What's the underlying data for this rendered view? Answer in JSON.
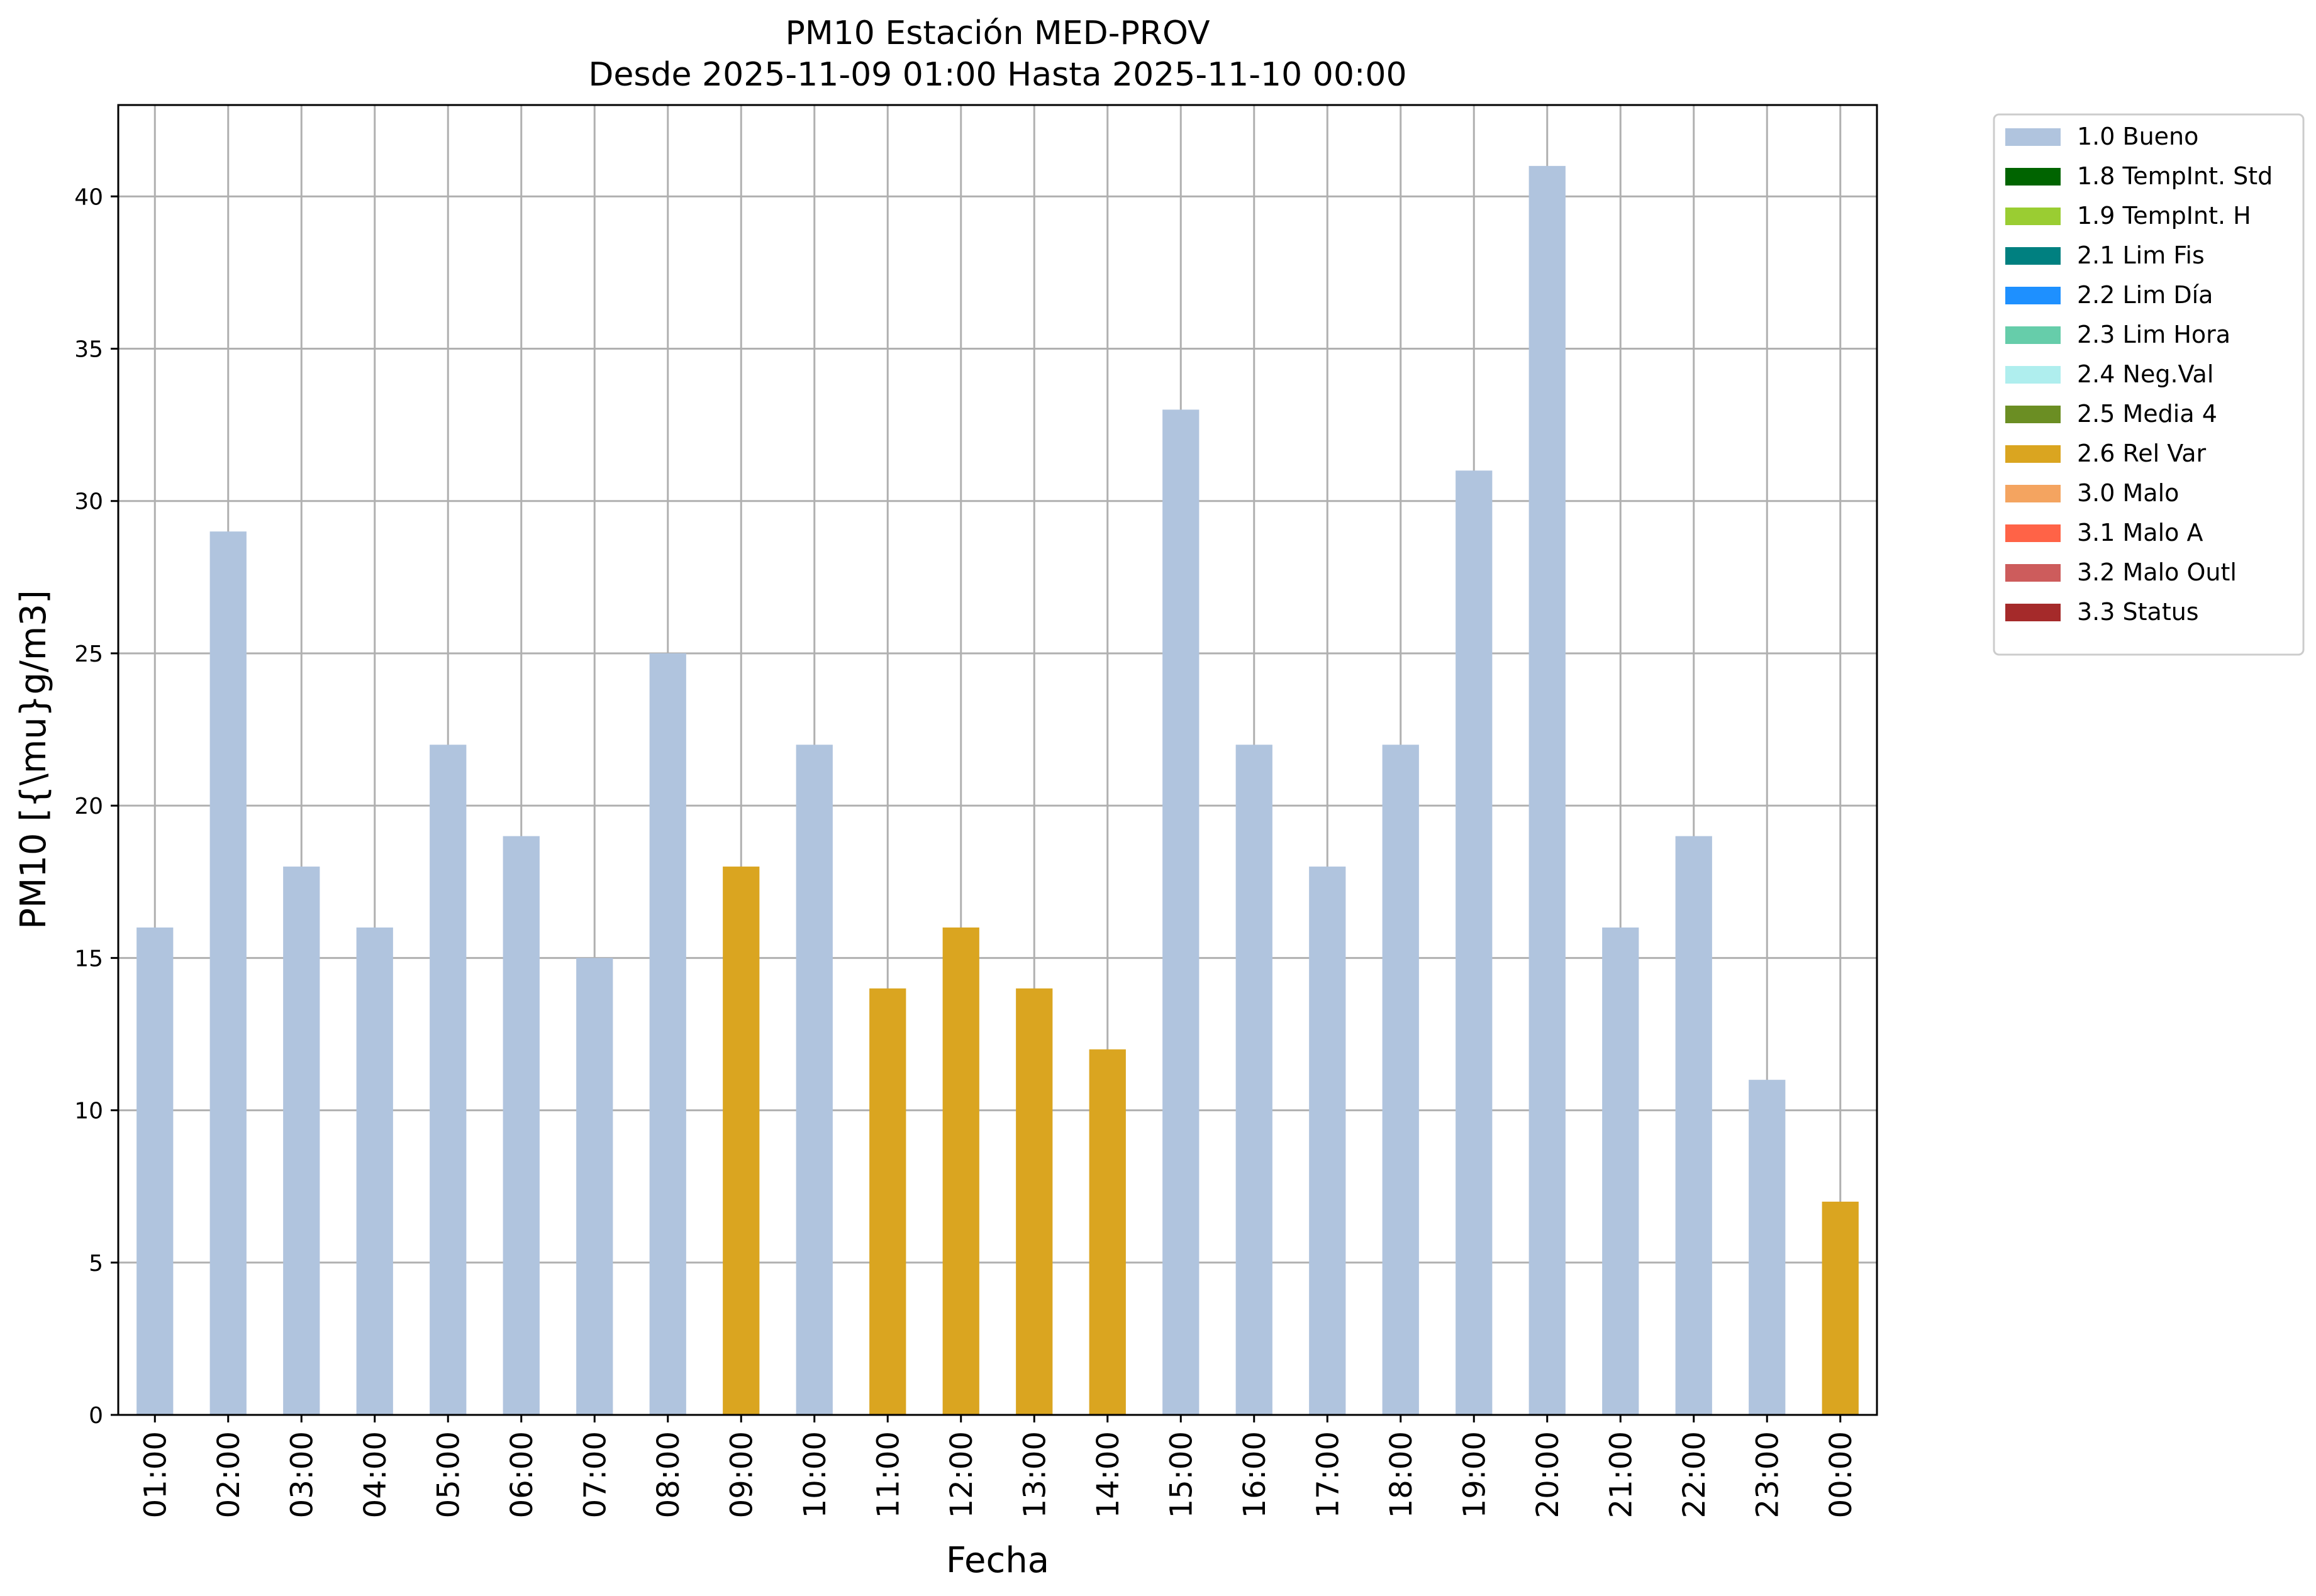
{
  "chart_data": {
    "type": "bar",
    "title": "PM10 Estación MED-PROV",
    "subtitle": "Desde 2025-11-09 01:00 Hasta 2025-11-10 00:00",
    "xlabel": "Fecha",
    "ylabel": "PM10 [{\\mu}g/m3]",
    "ylim": [
      0,
      43
    ],
    "yticks": [
      0,
      5,
      10,
      15,
      20,
      25,
      30,
      35,
      40
    ],
    "grid": true,
    "legend_position": "outside-top-right",
    "categories": [
      "01:00",
      "02:00",
      "03:00",
      "04:00",
      "05:00",
      "06:00",
      "07:00",
      "08:00",
      "09:00",
      "10:00",
      "11:00",
      "12:00",
      "13:00",
      "14:00",
      "15:00",
      "16:00",
      "17:00",
      "18:00",
      "19:00",
      "20:00",
      "21:00",
      "22:00",
      "23:00",
      "00:00"
    ],
    "values": [
      16,
      29,
      18,
      16,
      22,
      19,
      15,
      25,
      18,
      22,
      14,
      16,
      14,
      12,
      33,
      22,
      18,
      22,
      31,
      41,
      16,
      19,
      11,
      7
    ],
    "flags": [
      "1.0 Bueno",
      "1.0 Bueno",
      "1.0 Bueno",
      "1.0 Bueno",
      "1.0 Bueno",
      "1.0 Bueno",
      "1.0 Bueno",
      "1.0 Bueno",
      "2.6 Rel Var",
      "1.0 Bueno",
      "2.6 Rel Var",
      "2.6 Rel Var",
      "2.6 Rel Var",
      "2.6 Rel Var",
      "1.0 Bueno",
      "1.0 Bueno",
      "1.0 Bueno",
      "1.0 Bueno",
      "1.0 Bueno",
      "1.0 Bueno",
      "1.0 Bueno",
      "1.0 Bueno",
      "1.0 Bueno",
      "2.6 Rel Var"
    ],
    "legend": [
      {
        "label": "1.0 Bueno",
        "color": "#b0c4de"
      },
      {
        "label": "1.8 TempInt. Std",
        "color": "#006400"
      },
      {
        "label": "1.9 TempInt. H",
        "color": "#9acd32"
      },
      {
        "label": "2.1 Lim Fis",
        "color": "#008080"
      },
      {
        "label": "2.2 Lim Día",
        "color": "#1e90ff"
      },
      {
        "label": "2.3 Lim Hora",
        "color": "#66cdaa"
      },
      {
        "label": "2.4 Neg.Val",
        "color": "#afeeee"
      },
      {
        "label": "2.5 Media 4",
        "color": "#6b8e23"
      },
      {
        "label": "2.6 Rel Var",
        "color": "#daa520"
      },
      {
        "label": "3.0 Malo",
        "color": "#f4a460"
      },
      {
        "label": "3.1 Malo A",
        "color": "#ff6347"
      },
      {
        "label": "3.2 Malo Outl",
        "color": "#cd5c5c"
      },
      {
        "label": "3.3 Status",
        "color": "#a52a2a"
      }
    ]
  }
}
